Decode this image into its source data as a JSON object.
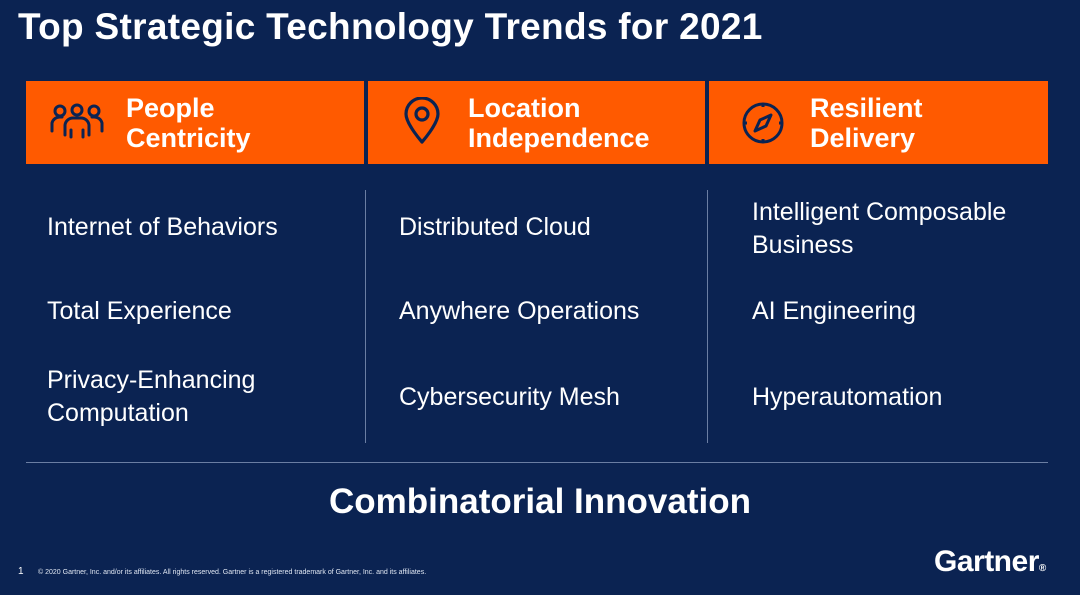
{
  "title": "Top Strategic Technology Trends for 2021",
  "columns": [
    {
      "icon": "people-group-icon",
      "heading_line1": "People",
      "heading_line2": "Centricity",
      "items": [
        {
          "line1": "Internet of Behaviors",
          "line2": ""
        },
        {
          "line1": "Total Experience",
          "line2": ""
        },
        {
          "line1": "Privacy-Enhancing",
          "line2": "Computation"
        }
      ]
    },
    {
      "icon": "location-pin-icon",
      "heading_line1": "Location",
      "heading_line2": "Independence",
      "items": [
        {
          "line1": "Distributed Cloud",
          "line2": ""
        },
        {
          "line1": "Anywhere Operations",
          "line2": ""
        },
        {
          "line1": "Cybersecurity Mesh",
          "line2": ""
        }
      ]
    },
    {
      "icon": "compass-icon",
      "heading_line1": "Resilient",
      "heading_line2": "Delivery",
      "items": [
        {
          "line1": "Intelligent Composable",
          "line2": "Business"
        },
        {
          "line1": "AI Engineering",
          "line2": ""
        },
        {
          "line1": "Hyperautomation",
          "line2": ""
        }
      ]
    }
  ],
  "footer_title": "Combinatorial Innovation",
  "page_number": "1",
  "copyright": "© 2020 Gartner, Inc. and/or its affiliates. All rights reserved. Gartner is a registered trademark of Gartner, Inc. and its affiliates.",
  "brand": "Gartner",
  "brand_mark": "®",
  "colors": {
    "background": "#0b2352",
    "accent": "#ff5a00",
    "text": "#ffffff"
  }
}
